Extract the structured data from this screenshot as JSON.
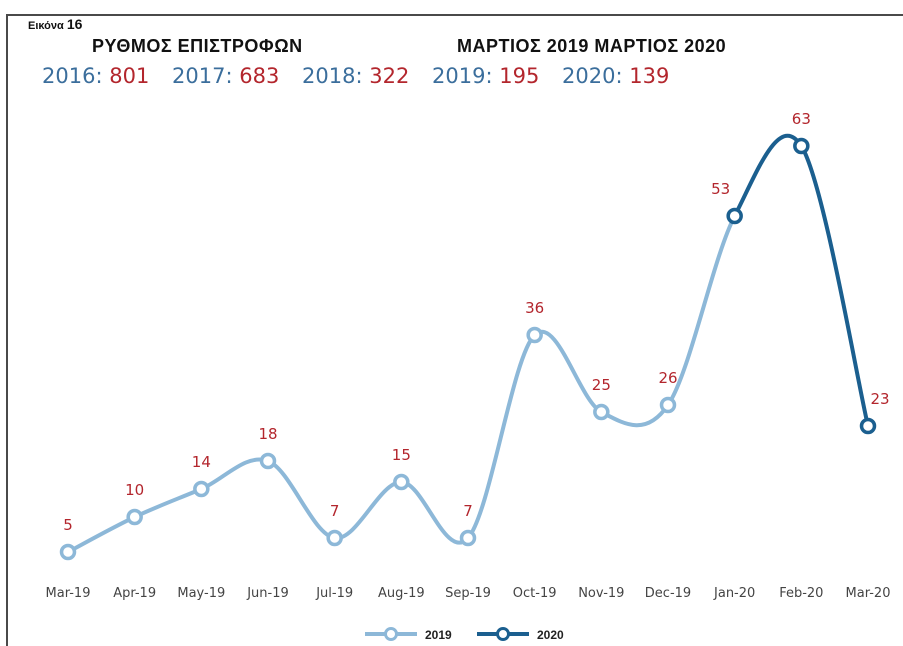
{
  "figure_label": {
    "prefix": "Εικόνα",
    "number": "16"
  },
  "title_left": "ΡΥΘΜΟΣ ΕΠΙΣΤΡΟΦΩΝ",
  "title_right": "ΜΑΡΤΙΟΣ 2019 ΜΑΡΤΙΟΣ 2020",
  "stats": [
    {
      "year": "2016",
      "value": "801"
    },
    {
      "year": "2017",
      "value": "683"
    },
    {
      "year": "2018",
      "value": "322"
    },
    {
      "year": "2019",
      "value": "195"
    },
    {
      "year": "2020",
      "value": "139"
    }
  ],
  "colors": {
    "series_2019": "#8db8d8",
    "series_2020": "#1b5f8f",
    "data_label": "#b3262d",
    "year_text": "#3b6e9c"
  },
  "chart_data": {
    "type": "line",
    "categories": [
      "Mar-19",
      "Apr-19",
      "May-19",
      "Jun-19",
      "Jul-19",
      "Aug-19",
      "Sep-19",
      "Oct-19",
      "Nov-19",
      "Dec-19",
      "Jan-20",
      "Feb-20",
      "Mar-20"
    ],
    "values": [
      5,
      10,
      14,
      18,
      7,
      15,
      7,
      36,
      25,
      26,
      53,
      63,
      23
    ],
    "series": [
      {
        "name": "2019",
        "start_index": 0,
        "end_index": 10
      },
      {
        "name": "2020",
        "start_index": 10,
        "end_index": 12
      }
    ],
    "ylim": [
      0,
      70
    ],
    "grid": false,
    "legend": "bottom-center",
    "smooth": true
  }
}
